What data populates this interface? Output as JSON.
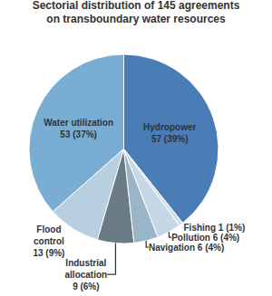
{
  "chart_data": {
    "type": "pie",
    "title": "Sectorial distribution of 145 agreements\non transboundary water resources",
    "categories": [
      "Hydropower\n57 (39%)",
      "Water utilization\n53 (37%)",
      "Flood\ncontrol\n13 (9%)",
      "Industrial\nallocation\n9 (6%)",
      "Navigation 6 (4%)",
      "Pollution 6 (4%)",
      "Fishing 1 (1%)"
    ],
    "values": [
      57,
      53,
      13,
      9,
      6,
      6,
      1
    ],
    "colors": [
      "#4a7db5",
      "#7aadd4",
      "#b8cfe0",
      "#6b7b85",
      "#9ab5c8",
      "#c5d8e8",
      "#d0dfe8"
    ]
  }
}
